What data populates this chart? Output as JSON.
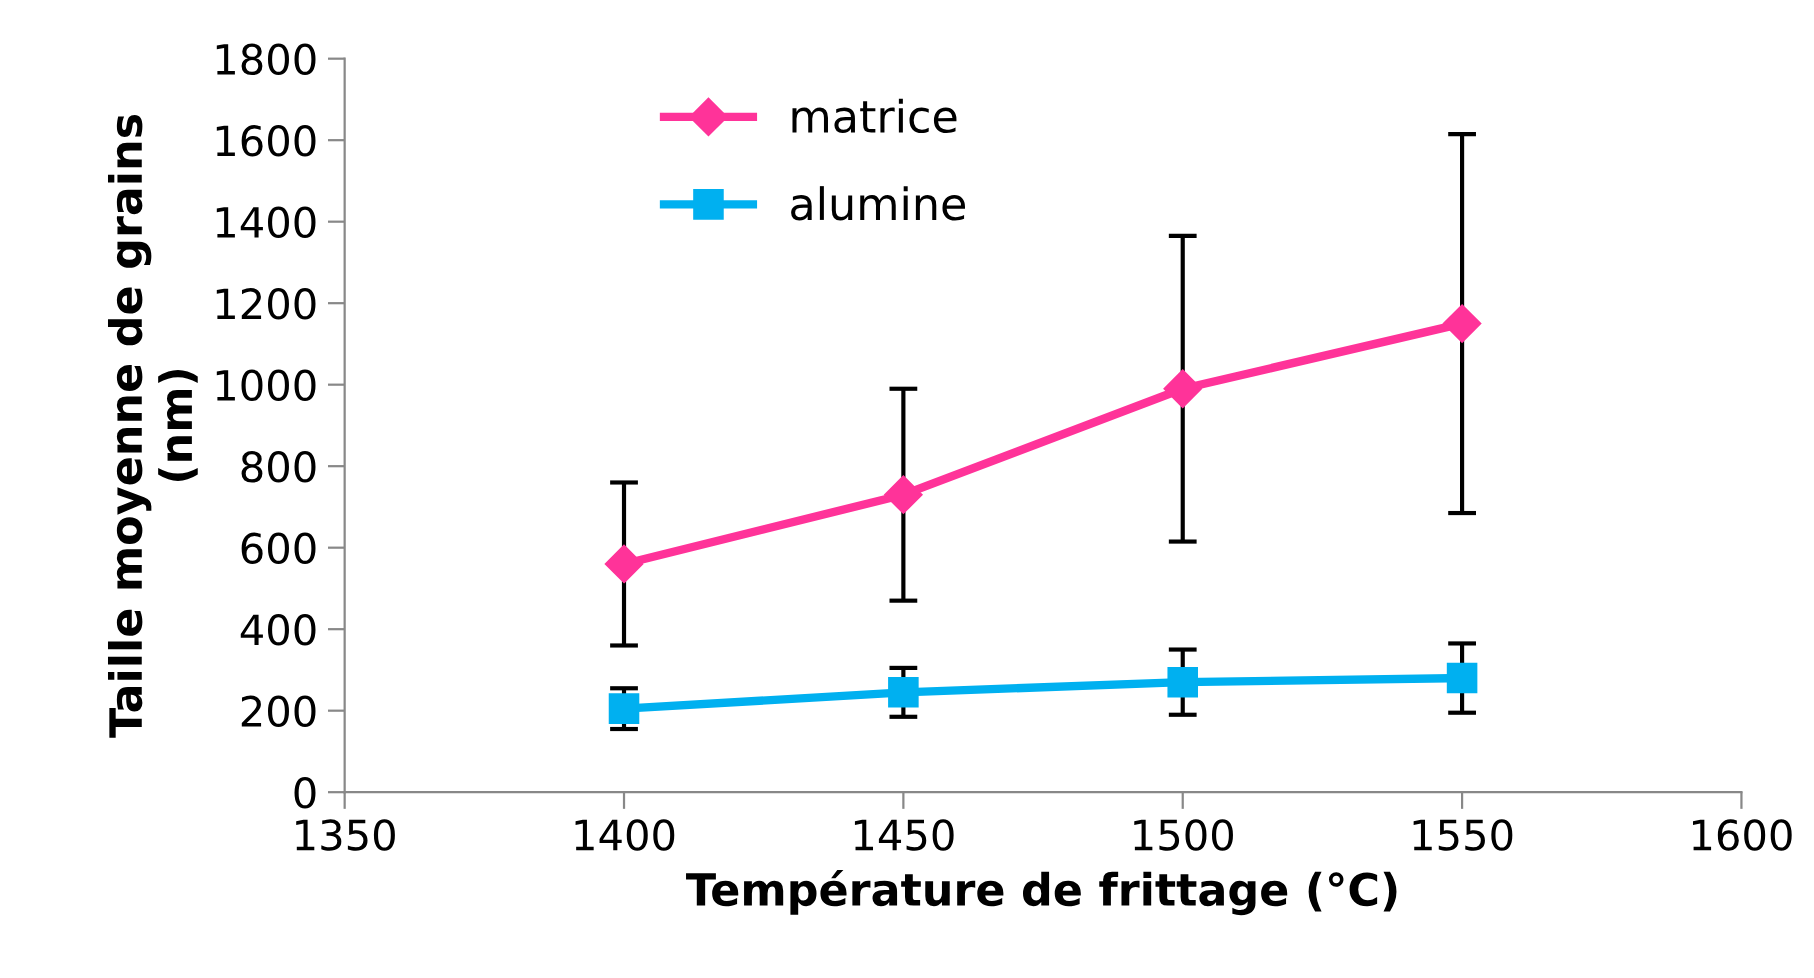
{
  "chart_data": {
    "type": "line",
    "xlabel": "Température de frittage (°C)",
    "ylabel": "Taille moyenne de grains\n(nm)",
    "xlim": [
      1350,
      1600
    ],
    "xticks": [
      1350,
      1400,
      1450,
      1500,
      1550,
      1600
    ],
    "ylim": [
      0,
      1800
    ],
    "yticks": [
      0,
      200,
      400,
      600,
      800,
      1000,
      1200,
      1400,
      1600,
      1800
    ],
    "grid": false,
    "legend": "top left",
    "series": [
      {
        "name": "matrice",
        "color": "#ff3399",
        "marker": "diamond",
        "x": [
          1400,
          1450,
          1500,
          1550
        ],
        "values": [
          560,
          730,
          990,
          1150
        ],
        "errors": [
          200,
          260,
          375,
          465
        ]
      },
      {
        "name": "alumine",
        "color": "#00b0f0",
        "marker": "square",
        "x": [
          1400,
          1450,
          1500,
          1550
        ],
        "values": [
          205,
          245,
          270,
          280
        ],
        "errors": [
          50,
          60,
          80,
          85
        ]
      }
    ]
  }
}
